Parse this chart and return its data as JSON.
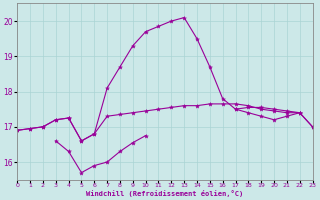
{
  "background_color": "#cce8e8",
  "grid_color": "#aad4d4",
  "line_color": "#990099",
  "xlabel": "Windchill (Refroidissement éolien,°C)",
  "ylim": [
    15.5,
    20.5
  ],
  "yticks": [
    16,
    17,
    18,
    19,
    20
  ],
  "xlim": [
    0,
    23
  ],
  "lines": [
    {
      "x": [
        0,
        1,
        2,
        3,
        4,
        5,
        6,
        7,
        8,
        9,
        10,
        11,
        12,
        13,
        14,
        15,
        16,
        17,
        18,
        19,
        20,
        21,
        22,
        23
      ],
      "y": [
        16.9,
        16.95,
        17.0,
        17.2,
        17.25,
        16.6,
        16.8,
        17.3,
        17.35,
        17.4,
        17.45,
        17.5,
        17.55,
        17.6,
        17.6,
        17.65,
        17.65,
        17.65,
        17.6,
        17.5,
        17.45,
        17.4,
        17.4,
        17.0
      ]
    },
    {
      "x": [
        3,
        4,
        5,
        6,
        7,
        8,
        9,
        10
      ],
      "y": [
        16.6,
        16.3,
        15.7,
        15.9,
        16.0,
        16.3,
        16.55,
        16.75
      ]
    },
    {
      "x": [
        0,
        1,
        2,
        3,
        4,
        5,
        6,
        7,
        8,
        9,
        10,
        11,
        12,
        13,
        14,
        15,
        16,
        17,
        18,
        19,
        20,
        21,
        22
      ],
      "y": [
        16.9,
        16.95,
        17.0,
        17.2,
        17.25,
        16.6,
        16.8,
        18.1,
        18.7,
        19.3,
        19.7,
        19.85,
        20.0,
        20.1,
        19.5,
        18.7,
        17.8,
        17.5,
        17.4,
        17.3,
        17.2,
        17.3,
        17.4
      ]
    },
    {
      "x": [
        17,
        18,
        19,
        20,
        21,
        22,
        23
      ],
      "y": [
        17.5,
        17.55,
        17.55,
        17.5,
        17.45,
        17.4,
        17.0
      ]
    }
  ]
}
